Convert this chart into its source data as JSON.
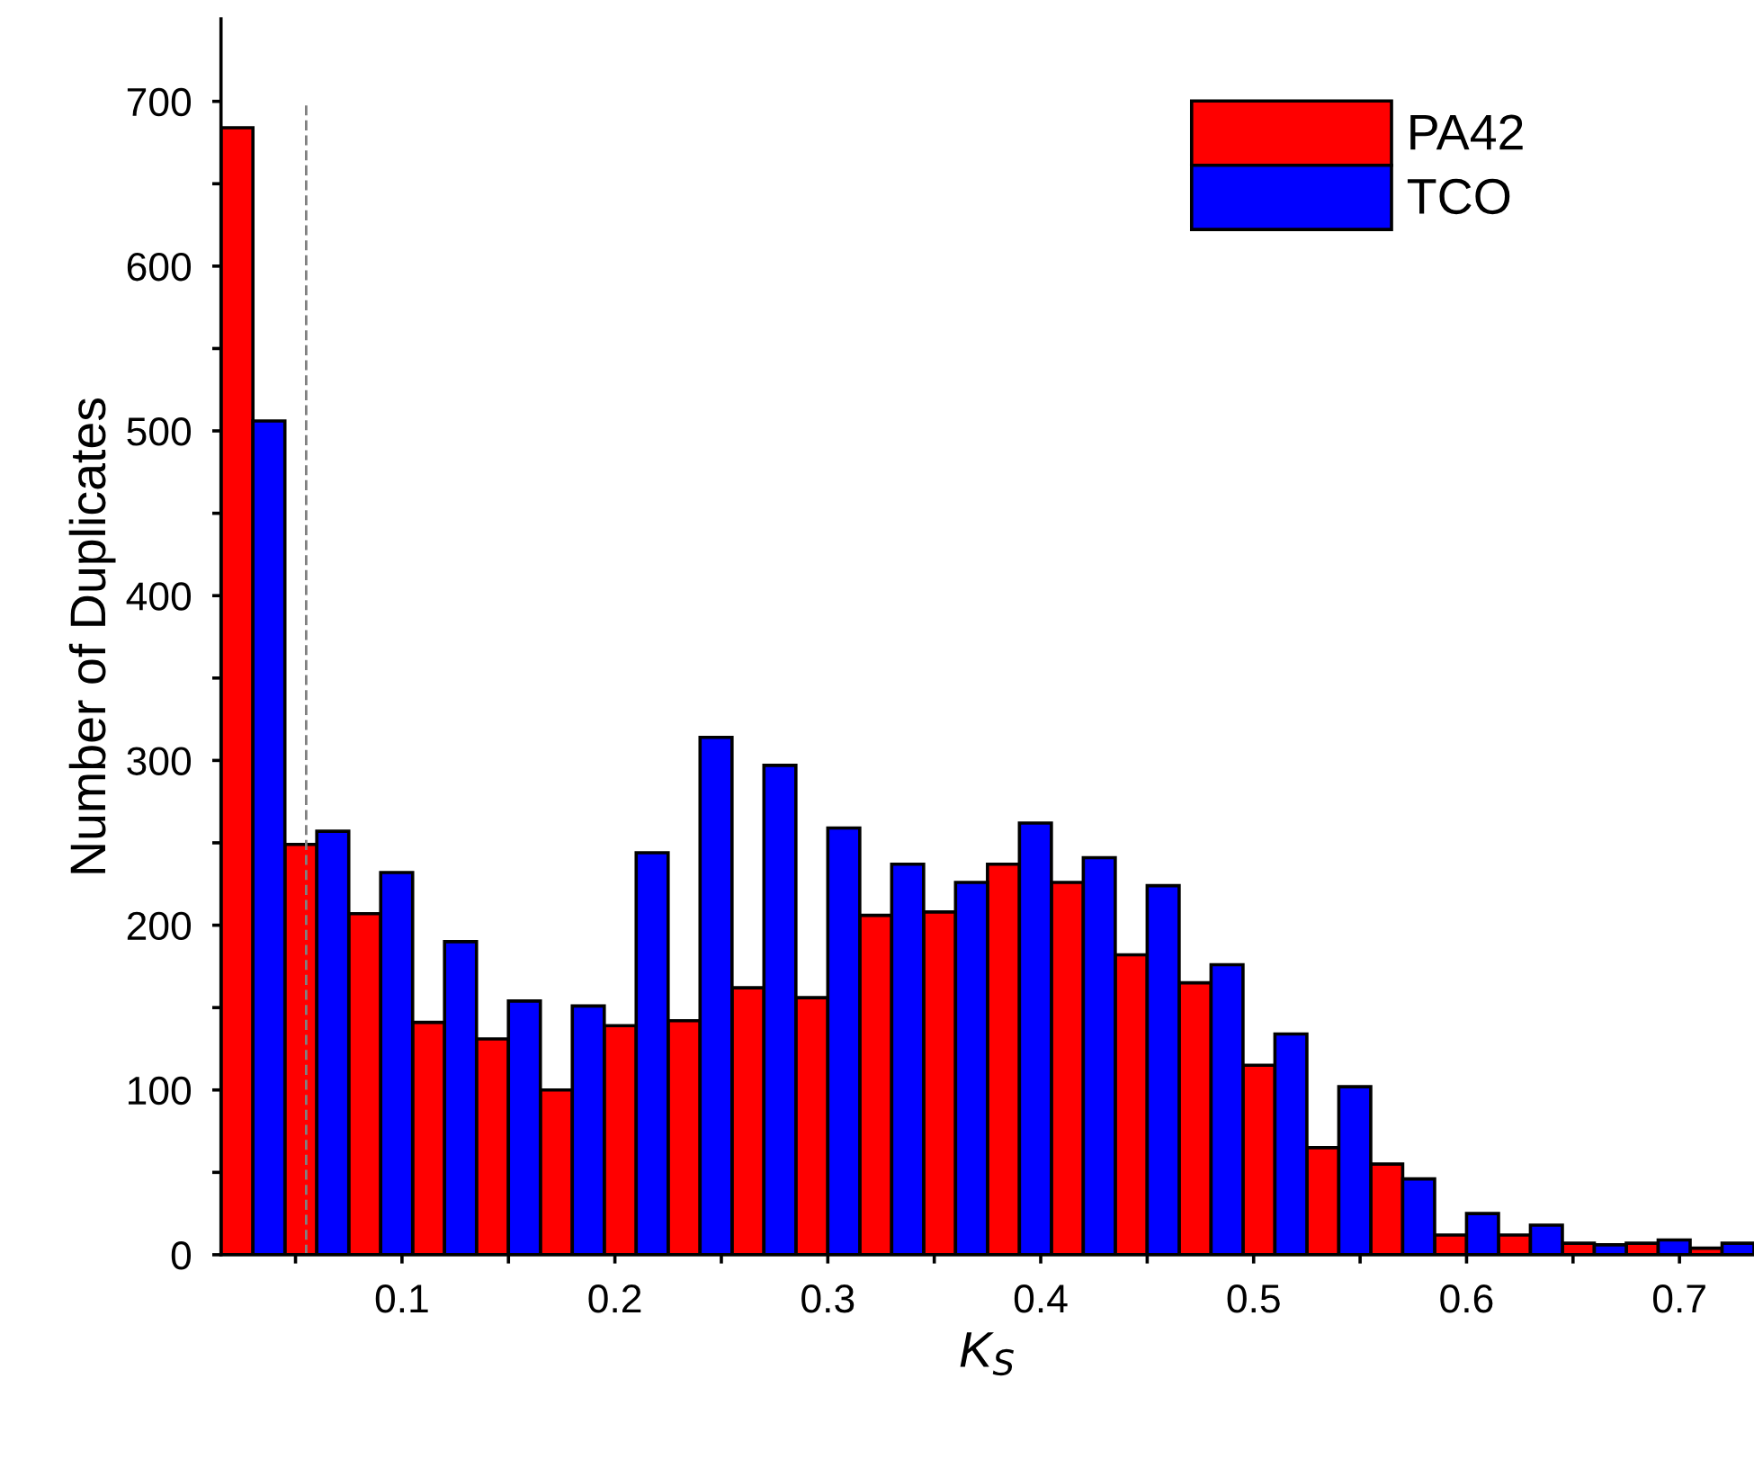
{
  "chart_data": {
    "type": "bar",
    "xlabel": "K$_{S}$",
    "ylabel": "Number of Duplicates",
    "x": [
      0.03,
      0.06,
      0.09,
      0.12,
      0.15,
      0.18,
      0.21,
      0.24,
      0.27,
      0.3,
      0.33,
      0.36,
      0.39,
      0.42,
      0.45,
      0.48,
      0.51,
      0.54,
      0.57,
      0.6,
      0.63,
      0.66,
      0.69,
      0.72
    ],
    "series": [
      {
        "name": "PA42",
        "color": "#ff0000",
        "values": [
          684,
          249,
          207,
          141,
          131,
          100,
          139,
          142,
          162,
          156,
          206,
          208,
          237,
          226,
          182,
          165,
          115,
          65,
          55,
          12,
          12,
          7,
          7,
          4
        ]
      },
      {
        "name": "TCO",
        "color": "#0000ff",
        "values": [
          506,
          257,
          232,
          190,
          154,
          151,
          244,
          314,
          297,
          259,
          237,
          226,
          262,
          241,
          224,
          176,
          134,
          102,
          46,
          25,
          18,
          6,
          9,
          7
        ]
      }
    ],
    "xlim": [
      0.015,
      0.735
    ],
    "xticks": [
      {
        "value": 0.05,
        "label": null
      },
      0.1,
      {
        "value": 0.15,
        "label": null
      },
      0.2,
      {
        "value": 0.25,
        "label": null
      },
      0.3,
      {
        "value": 0.35,
        "label": null
      },
      0.4,
      {
        "value": 0.45,
        "label": null
      },
      0.5,
      {
        "value": 0.55,
        "label": null
      },
      0.6,
      {
        "value": 0.65,
        "label": null
      },
      0.7
    ],
    "ylim": [
      0,
      750
    ],
    "yticks": [
      0,
      {
        "value": 50,
        "label": null
      },
      100,
      {
        "value": 150,
        "label": null
      },
      200,
      {
        "value": 250,
        "label": null
      },
      300,
      {
        "value": 350,
        "label": null
      },
      400,
      {
        "value": 450,
        "label": null
      },
      500,
      {
        "value": 550,
        "label": null
      },
      600,
      {
        "value": 650,
        "label": null
      },
      700
    ],
    "ref_lines": [
      {
        "axis": "x",
        "value": 0.055,
        "color": "#808080",
        "line_style": "dashed"
      }
    ],
    "legend": "top right",
    "grid": false
  }
}
